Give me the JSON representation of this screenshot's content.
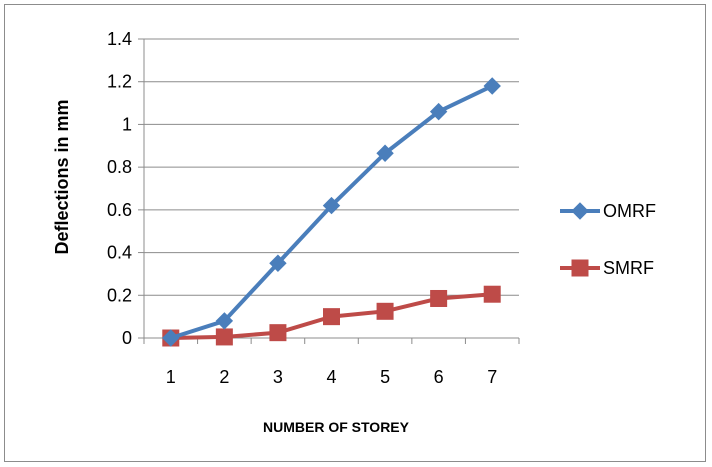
{
  "chart_data": {
    "type": "line",
    "title": "",
    "xlabel": "NUMBER OF STOREY",
    "ylabel": "Deflections in mm",
    "x": [
      1,
      2,
      3,
      4,
      5,
      6,
      7
    ],
    "x_tick_labels": [
      "1",
      "2",
      "3",
      "4",
      "5",
      "6",
      "7"
    ],
    "ylim": [
      0,
      1.4
    ],
    "y_ticks": [
      0,
      0.2,
      0.4,
      0.6,
      0.8,
      1,
      1.2,
      1.4
    ],
    "y_tick_labels": [
      "0",
      "0.2",
      "0.4",
      "0.6",
      "0.8",
      "1",
      "1.2",
      "1.4"
    ],
    "grid": "horizontal",
    "legend_position": "right",
    "series": [
      {
        "name": "OMRF",
        "color": "#4a7ebb",
        "marker": "diamond",
        "values": [
          0,
          0.08,
          0.35,
          0.62,
          0.865,
          1.06,
          1.18
        ]
      },
      {
        "name": "SMRF",
        "color": "#be4b48",
        "marker": "square",
        "values": [
          0,
          0.005,
          0.025,
          0.1,
          0.125,
          0.185,
          0.205
        ]
      }
    ]
  }
}
